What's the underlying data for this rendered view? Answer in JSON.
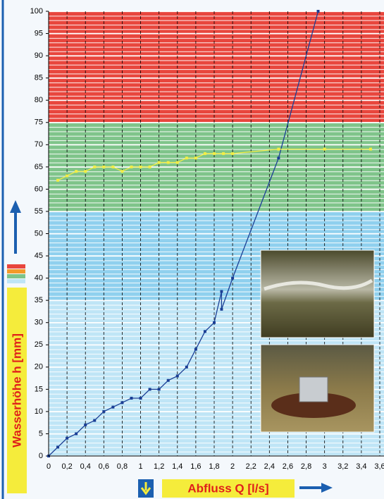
{
  "chart_data": {
    "type": "line",
    "xlabel": "Abfluss Q [l/s]",
    "ylabel": "Wasserhöhe h [mm]",
    "xlim": [
      0,
      3.6
    ],
    "ylim": [
      0,
      100
    ],
    "xticks": [
      0,
      {
        "value": 0.2,
        "label": "0,2"
      },
      {
        "value": 0.4,
        "label": "0,4"
      },
      {
        "value": 0.6,
        "label": "0,6"
      },
      {
        "value": 0.8,
        "label": "0,8"
      },
      1,
      {
        "value": 1.2,
        "label": "1,2"
      },
      {
        "value": 1.4,
        "label": "1,4"
      },
      {
        "value": 1.6,
        "label": "1,6"
      },
      {
        "value": 1.8,
        "label": "1,8"
      },
      2,
      {
        "value": 2.2,
        "label": "2,2"
      },
      {
        "value": 2.4,
        "label": "2,4"
      },
      {
        "value": 2.6,
        "label": "2,6"
      },
      {
        "value": 2.8,
        "label": "2,8"
      },
      3,
      {
        "value": 3.2,
        "label": "3,2"
      },
      {
        "value": 3.4,
        "label": "3,4"
      },
      {
        "value": 3.6,
        "label": "3,6"
      }
    ],
    "yticks": [
      0,
      5,
      10,
      15,
      20,
      25,
      30,
      35,
      40,
      45,
      50,
      55,
      60,
      65,
      70,
      75,
      80,
      85,
      90,
      95,
      100
    ],
    "bands": [
      {
        "from": 75,
        "to": 100,
        "color": "#e8463d"
      },
      {
        "from": 55,
        "to": 75,
        "color": "#7fc48a"
      },
      {
        "from": 35,
        "to": 55,
        "color": "#8fd0ee"
      },
      {
        "from": 0,
        "to": 35,
        "color": "#bfe5f6"
      }
    ],
    "series": [
      {
        "color": "#1b3f95",
        "x": [
          0,
          0.1,
          0.2,
          0.3,
          0.4,
          0.5,
          0.6,
          0.7,
          0.8,
          0.9,
          1.0,
          1.1,
          1.2,
          1.3,
          1.4,
          1.5,
          1.6,
          1.7,
          1.8,
          1.88,
          1.88,
          2.0,
          2.5,
          2.93
        ],
        "values": [
          0,
          2,
          4,
          5,
          7,
          8,
          10,
          11,
          12,
          13,
          13,
          15,
          15,
          17,
          18,
          20,
          24,
          28,
          30,
          37,
          33,
          40,
          67,
          100
        ]
      },
      {
        "color": "#f2ee45",
        "x": [
          0.1,
          0.2,
          0.3,
          0.4,
          0.5,
          0.6,
          0.7,
          0.8,
          0.9,
          1.0,
          1.1,
          1.2,
          1.3,
          1.4,
          1.5,
          1.6,
          1.7,
          1.8,
          1.9,
          2.0,
          2.5,
          3.0,
          3.5
        ],
        "values": [
          62,
          63,
          64,
          64,
          65,
          65,
          65,
          64,
          65,
          65,
          65,
          66,
          66,
          66,
          67,
          67,
          68,
          68,
          68,
          68,
          69,
          69,
          69
        ]
      }
    ]
  }
}
